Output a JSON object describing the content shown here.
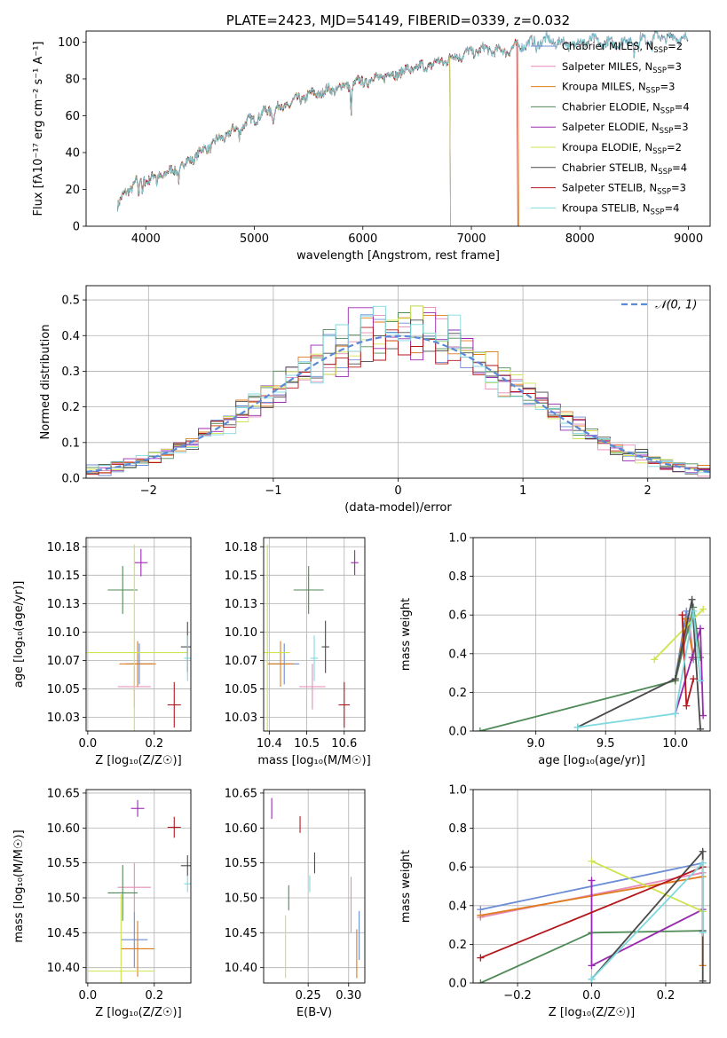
{
  "colors": {
    "Chabrier MILES": "#6b8cd6",
    "Salpeter MILES": "#e58ab8",
    "Kroupa MILES": "#e07b1a",
    "Chabrier ELODIE": "#4f8a57",
    "Salpeter ELODIE": "#9a28b0",
    "Kroupa ELODIE": "#cfe34f",
    "Chabrier STELIB": "#4a4a4a",
    "Salpeter STELIB": "#b3161b",
    "Kroupa STELIB": "#7fd9e0"
  },
  "models": [
    {
      "name": "Chabrier MILES",
      "legend_prefix": "Chabrier MILES, N",
      "nssp": "=2"
    },
    {
      "name": "Salpeter MILES",
      "legend_prefix": "Salpeter MILES, N",
      "nssp": "=3"
    },
    {
      "name": "Kroupa MILES",
      "legend_prefix": "Kroupa MILES, N",
      "nssp": "=3"
    },
    {
      "name": "Chabrier ELODIE",
      "legend_prefix": "Chabrier ELODIE, N",
      "nssp": "=4"
    },
    {
      "name": "Salpeter ELODIE",
      "legend_prefix": "Salpeter ELODIE, N",
      "nssp": "=3"
    },
    {
      "name": "Kroupa ELODIE",
      "legend_prefix": "Kroupa ELODIE, N",
      "nssp": "=2"
    },
    {
      "name": "Chabrier STELIB",
      "legend_prefix": "Chabrier STELIB, N",
      "nssp": "=4"
    },
    {
      "name": "Salpeter STELIB",
      "legend_prefix": "Salpeter STELIB, N",
      "nssp": "=3"
    },
    {
      "name": "Kroupa STELIB",
      "legend_prefix": "Kroupa STELIB, N",
      "nssp": "=4"
    }
  ],
  "nssp_subscript": "SSP",
  "chart_data": [
    {
      "id": "spectrum",
      "type": "line",
      "title": "PLATE=2423, MJD=54149, FIBERID=0339, z=0.032",
      "xlabel": "wavelength [Angstrom, rest frame]",
      "ylabel": "Flux [fλ10⁻¹⁷ erg cm⁻² s⁻¹ A⁻¹]",
      "xlim": [
        3450,
        9200
      ],
      "ylim": [
        0,
        106
      ],
      "xticks": [
        4000,
        5000,
        6000,
        7000,
        8000,
        9000
      ],
      "yticks": [
        0,
        20,
        40,
        60,
        80,
        100
      ],
      "grid": false,
      "legend_position": "top-right",
      "continuum": [
        [
          3740,
          12
        ],
        [
          3900,
          24
        ],
        [
          4100,
          27
        ],
        [
          4300,
          31
        ],
        [
          4500,
          40
        ],
        [
          4700,
          48
        ],
        [
          4900,
          55
        ],
        [
          5100,
          62
        ],
        [
          5300,
          66
        ],
        [
          5500,
          71
        ],
        [
          5700,
          74
        ],
        [
          5900,
          77
        ],
        [
          6100,
          80
        ],
        [
          6300,
          83
        ],
        [
          6500,
          86
        ],
        [
          6700,
          89
        ],
        [
          6900,
          93
        ],
        [
          7100,
          96
        ],
        [
          7300,
          95
        ],
        [
          7500,
          99
        ],
        [
          7700,
          101
        ],
        [
          7900,
          99
        ],
        [
          8100,
          101
        ],
        [
          8300,
          99
        ],
        [
          8500,
          101
        ],
        [
          8700,
          103
        ],
        [
          8900,
          102
        ]
      ],
      "absorption_lines": [
        [
          3934,
          12
        ],
        [
          3969,
          10
        ],
        [
          4102,
          6
        ],
        [
          4305,
          5
        ],
        [
          4861,
          6
        ],
        [
          5175,
          7
        ],
        [
          5270,
          4
        ],
        [
          5892,
          18
        ],
        [
          6563,
          6
        ],
        [
          7600,
          6
        ],
        [
          8200,
          4
        ],
        [
          8500,
          8
        ],
        [
          8542,
          9
        ],
        [
          8662,
          8
        ]
      ],
      "model_ranges": [
        {
          "name": "Chabrier MILES",
          "xmin": 3740,
          "xmax": 9000
        },
        {
          "name": "Salpeter MILES",
          "xmin": 3740,
          "xmax": 9000
        },
        {
          "name": "Kroupa MILES",
          "xmin": 3740,
          "xmax": 7430
        },
        {
          "name": "Chabrier ELODIE",
          "xmin": 3740,
          "xmax": 6800
        },
        {
          "name": "Salpeter ELODIE",
          "xmin": 3740,
          "xmax": 6800
        },
        {
          "name": "Kroupa ELODIE",
          "xmin": 3740,
          "xmax": 6800
        },
        {
          "name": "Chabrier STELIB",
          "xmin": 3740,
          "xmax": 9000
        },
        {
          "name": "Salpeter STELIB",
          "xmin": 3740,
          "xmax": 7420
        },
        {
          "name": "Kroupa STELIB",
          "xmin": 3740,
          "xmax": 9000
        }
      ]
    },
    {
      "id": "residuals",
      "type": "histogram",
      "xlabel": "(data-model)/error",
      "ylabel": "Normed distribution",
      "xlim": [
        -2.5,
        2.5
      ],
      "ylim": [
        0,
        0.54
      ],
      "xticks": [
        -2,
        -1,
        0,
        1,
        2
      ],
      "yticks": [
        0.0,
        0.1,
        0.2,
        0.3,
        0.4,
        0.5
      ],
      "grid": true,
      "bin_width": 0.1,
      "curve_label": "𝒩(0, 1)",
      "curve_color": "#5b8ad6",
      "legend_position": "top-right"
    },
    {
      "id": "age_vs_z",
      "type": "errorbar",
      "xlabel": "Z [log₁₀(Z/Z☉)]",
      "ylabel": "age  [log₁₀(age/yr)]",
      "xlim": [
        -0.005,
        0.31
      ],
      "ylim": [
        10.013,
        10.183
      ],
      "xticks": [
        0.0,
        0.2
      ],
      "xticklabels": [
        "0.0",
        "0.2"
      ],
      "yticks": [
        10.025,
        10.05,
        10.075,
        10.1,
        10.125,
        10.15,
        10.175
      ],
      "grid": true,
      "points": [
        {
          "name": "Chabrier MILES",
          "x": 0.155,
          "xerr": 0.04,
          "y": 10.072,
          "yerr": 0.018
        },
        {
          "name": "Salpeter MILES",
          "x": 0.14,
          "xerr": 0.05,
          "y": 10.052,
          "yerr": 0.018
        },
        {
          "name": "Kroupa MILES",
          "x": 0.15,
          "xerr": 0.055,
          "y": 10.072,
          "yerr": 0.02
        },
        {
          "name": "Chabrier ELODIE",
          "x": 0.105,
          "xerr": 0.045,
          "y": 10.137,
          "yerr": 0.021
        },
        {
          "name": "Salpeter ELODIE",
          "x": 0.16,
          "xerr": 0.02,
          "y": 10.161,
          "yerr": 0.012
        },
        {
          "name": "Kroupa ELODIE",
          "x": 0.14,
          "xerr": 0.16,
          "y": 10.082,
          "yerr": 0.095
        },
        {
          "name": "Chabrier STELIB",
          "x": 0.3,
          "xerr": 0.02,
          "y": 10.087,
          "yerr": 0.022
        },
        {
          "name": "Salpeter STELIB",
          "x": 0.26,
          "xerr": 0.02,
          "y": 10.036,
          "yerr": 0.02
        },
        {
          "name": "Kroupa STELIB",
          "x": 0.3,
          "xerr": 0.01,
          "y": 10.077,
          "yerr": 0.02
        }
      ]
    },
    {
      "id": "age_vs_mass",
      "type": "errorbar",
      "xlabel": "mass [log₁₀(M/M☉)]",
      "ylabel": "",
      "xlim": [
        10.385,
        10.655
      ],
      "ylim": [
        10.013,
        10.183
      ],
      "xticks": [
        10.4,
        10.5,
        10.6
      ],
      "yticks": [
        10.025,
        10.05,
        10.075,
        10.1,
        10.125,
        10.15,
        10.175
      ],
      "grid": true,
      "points": [
        {
          "name": "Chabrier MILES",
          "x": 10.44,
          "xerr": 0.04,
          "y": 10.072,
          "yerr": 0.018
        },
        {
          "name": "Salpeter MILES",
          "x": 10.515,
          "xerr": 0.035,
          "y": 10.052,
          "yerr": 0.02
        },
        {
          "name": "Kroupa MILES",
          "x": 10.43,
          "xerr": 0.035,
          "y": 10.072,
          "yerr": 0.02
        },
        {
          "name": "Chabrier ELODIE",
          "x": 10.505,
          "xerr": 0.04,
          "y": 10.137,
          "yerr": 0.021
        },
        {
          "name": "Salpeter ELODIE",
          "x": 10.628,
          "xerr": 0.01,
          "y": 10.161,
          "yerr": 0.011
        },
        {
          "name": "Kroupa ELODIE",
          "x": 10.395,
          "xerr": 0.06,
          "y": 10.082,
          "yerr": 0.095
        },
        {
          "name": "Chabrier STELIB",
          "x": 10.55,
          "xerr": 0.01,
          "y": 10.087,
          "yerr": 0.023
        },
        {
          "name": "Salpeter STELIB",
          "x": 10.6,
          "xerr": 0.015,
          "y": 10.036,
          "yerr": 0.02
        },
        {
          "name": "Kroupa STELIB",
          "x": 10.52,
          "xerr": 0.01,
          "y": 10.077,
          "yerr": 0.02
        }
      ]
    },
    {
      "id": "weight_vs_age",
      "type": "line",
      "xlabel": "age  [log₁₀(age/yr)]",
      "ylabel": "mass weight",
      "xlim": [
        8.55,
        10.25
      ],
      "ylim": [
        0,
        1.0
      ],
      "xticks": [
        9.0,
        9.5,
        10.0
      ],
      "yticks": [
        0.0,
        0.2,
        0.4,
        0.6,
        0.8,
        1.0
      ],
      "grid": true,
      "series": [
        {
          "name": "Chabrier MILES",
          "x": [
            10.0,
            10.08,
            10.13
          ],
          "y": [
            0.27,
            0.62,
            0.37
          ]
        },
        {
          "name": "Salpeter MILES",
          "x": [
            10.0,
            10.1,
            10.13
          ],
          "y": [
            0.27,
            0.57,
            0.38
          ]
        },
        {
          "name": "Kroupa MILES",
          "x": [
            10.0,
            10.08,
            10.13
          ],
          "y": [
            0.26,
            0.58,
            0.38
          ]
        },
        {
          "name": "Chabrier ELODIE",
          "x": [
            8.6,
            10.0,
            10.13,
            10.18
          ],
          "y": [
            0.0,
            0.26,
            0.64,
            0.38
          ]
        },
        {
          "name": "Salpeter ELODIE",
          "x": [
            10.0,
            10.12,
            10.18,
            10.2
          ],
          "y": [
            0.09,
            0.38,
            0.53,
            0.08
          ]
        },
        {
          "name": "Kroupa ELODIE",
          "x": [
            9.85,
            10.2
          ],
          "y": [
            0.37,
            0.63
          ]
        },
        {
          "name": "Chabrier STELIB",
          "x": [
            9.3,
            10.0,
            10.12,
            10.18
          ],
          "y": [
            0.02,
            0.27,
            0.68,
            0.01
          ]
        },
        {
          "name": "Salpeter STELIB",
          "x": [
            10.05,
            10.08,
            10.13
          ],
          "y": [
            0.6,
            0.13,
            0.27
          ]
        },
        {
          "name": "Kroupa STELIB",
          "x": [
            9.3,
            10.0,
            10.13,
            10.18
          ],
          "y": [
            0.02,
            0.09,
            0.62,
            0.26
          ]
        }
      ]
    },
    {
      "id": "mass_vs_z",
      "type": "errorbar",
      "xlabel": "Z [log₁₀(Z/Z☉)]",
      "ylabel": "mass [log₁₀(M/M☉)]",
      "xlim": [
        -0.005,
        0.31
      ],
      "ylim": [
        10.378,
        10.655
      ],
      "xticks": [
        0.0,
        0.2
      ],
      "xticklabels": [
        "0.0",
        "0.2"
      ],
      "yticks": [
        10.4,
        10.45,
        10.5,
        10.55,
        10.6,
        10.65
      ],
      "grid": true,
      "points": [
        {
          "name": "Chabrier MILES",
          "x": 0.14,
          "xerr": 0.04,
          "y": 10.44,
          "yerr": 0.04
        },
        {
          "name": "Salpeter MILES",
          "x": 0.14,
          "xerr": 0.05,
          "y": 10.515,
          "yerr": 0.035
        },
        {
          "name": "Kroupa MILES",
          "x": 0.15,
          "xerr": 0.05,
          "y": 10.427,
          "yerr": 0.04
        },
        {
          "name": "Chabrier ELODIE",
          "x": 0.105,
          "xerr": 0.045,
          "y": 10.507,
          "yerr": 0.04
        },
        {
          "name": "Salpeter ELODIE",
          "x": 0.15,
          "xerr": 0.02,
          "y": 10.628,
          "yerr": 0.012
        },
        {
          "name": "Kroupa ELODIE",
          "x": 0.1,
          "xerr": 0.1,
          "y": 10.395,
          "yerr": 0.11
        },
        {
          "name": "Chabrier STELIB",
          "x": 0.3,
          "xerr": 0.02,
          "y": 10.546,
          "yerr": 0.015
        },
        {
          "name": "Salpeter STELIB",
          "x": 0.26,
          "xerr": 0.02,
          "y": 10.601,
          "yerr": 0.015
        },
        {
          "name": "Kroupa STELIB",
          "x": 0.3,
          "xerr": 0.01,
          "y": 10.52,
          "yerr": 0.012
        }
      ]
    },
    {
      "id": "mass_vs_ebv",
      "type": "errorbar",
      "xlabel": "E(B-V)",
      "ylabel": "",
      "xlim": [
        0.195,
        0.32
      ],
      "ylim": [
        10.378,
        10.655
      ],
      "xticks": [
        0.25,
        0.3
      ],
      "yticks": [
        10.4,
        10.45,
        10.5,
        10.55,
        10.6,
        10.65
      ],
      "grid": true,
      "points": [
        {
          "name": "Chabrier MILES",
          "x": 0.313,
          "xerr": 0,
          "y": 10.446,
          "yerr": 0.035
        },
        {
          "name": "Salpeter MILES",
          "x": 0.303,
          "xerr": 0,
          "y": 10.49,
          "yerr": 0.04
        },
        {
          "name": "Kroupa MILES",
          "x": 0.31,
          "xerr": 0,
          "y": 10.42,
          "yerr": 0.035
        },
        {
          "name": "Chabrier ELODIE",
          "x": 0.226,
          "xerr": 0,
          "y": 10.5,
          "yerr": 0.018
        },
        {
          "name": "Salpeter ELODIE",
          "x": 0.205,
          "xerr": 0,
          "y": 10.628,
          "yerr": 0.015
        },
        {
          "name": "Kroupa ELODIE",
          "x": 0.222,
          "xerr": 0,
          "y": 10.43,
          "yerr": 0.045
        },
        {
          "name": "Chabrier STELIB",
          "x": 0.258,
          "xerr": 0,
          "y": 10.55,
          "yerr": 0.015
        },
        {
          "name": "Salpeter STELIB",
          "x": 0.24,
          "xerr": 0,
          "y": 10.605,
          "yerr": 0.012
        },
        {
          "name": "Kroupa STELIB",
          "x": 0.252,
          "xerr": 0,
          "y": 10.52,
          "yerr": 0.012
        }
      ]
    },
    {
      "id": "weight_vs_z",
      "type": "line",
      "xlabel": "Z [log₁₀(Z/Z☉)]",
      "ylabel": "mass weight",
      "xlim": [
        -0.32,
        0.32
      ],
      "ylim": [
        0,
        1.0
      ],
      "xticks": [
        -0.2,
        0.0,
        0.2
      ],
      "yticks": [
        0.0,
        0.2,
        0.4,
        0.6,
        0.8,
        1.0
      ],
      "grid": true,
      "series": [
        {
          "name": "Chabrier MILES",
          "x": [
            -0.3,
            0.3
          ],
          "y": [
            0.38,
            0.62
          ]
        },
        {
          "name": "Salpeter MILES",
          "x": [
            -0.3,
            0.3,
            0.3
          ],
          "y": [
            0.34,
            0.57,
            0.09
          ]
        },
        {
          "name": "Kroupa MILES",
          "x": [
            -0.3,
            0.3,
            0.3
          ],
          "y": [
            0.35,
            0.55,
            0.09
          ]
        },
        {
          "name": "Chabrier ELODIE",
          "x": [
            -0.3,
            0.0,
            0.0,
            0.3
          ],
          "y": [
            0.0,
            0.26,
            0.26,
            0.27
          ]
        },
        {
          "name": "Salpeter ELODIE",
          "x": [
            0.0,
            0.0,
            0.3
          ],
          "y": [
            0.53,
            0.09,
            0.38
          ]
        },
        {
          "name": "Kroupa ELODIE",
          "x": [
            0.0,
            0.3
          ],
          "y": [
            0.63,
            0.37
          ]
        },
        {
          "name": "Chabrier STELIB",
          "x": [
            0.0,
            0.3,
            0.3,
            0.3
          ],
          "y": [
            0.02,
            0.68,
            0.27,
            0.01
          ]
        },
        {
          "name": "Salpeter STELIB",
          "x": [
            -0.3,
            0.3
          ],
          "y": [
            0.13,
            0.6
          ]
        },
        {
          "name": "Kroupa STELIB",
          "x": [
            0.0,
            0.3,
            0.3
          ],
          "y": [
            0.02,
            0.62,
            0.26
          ]
        }
      ]
    }
  ]
}
